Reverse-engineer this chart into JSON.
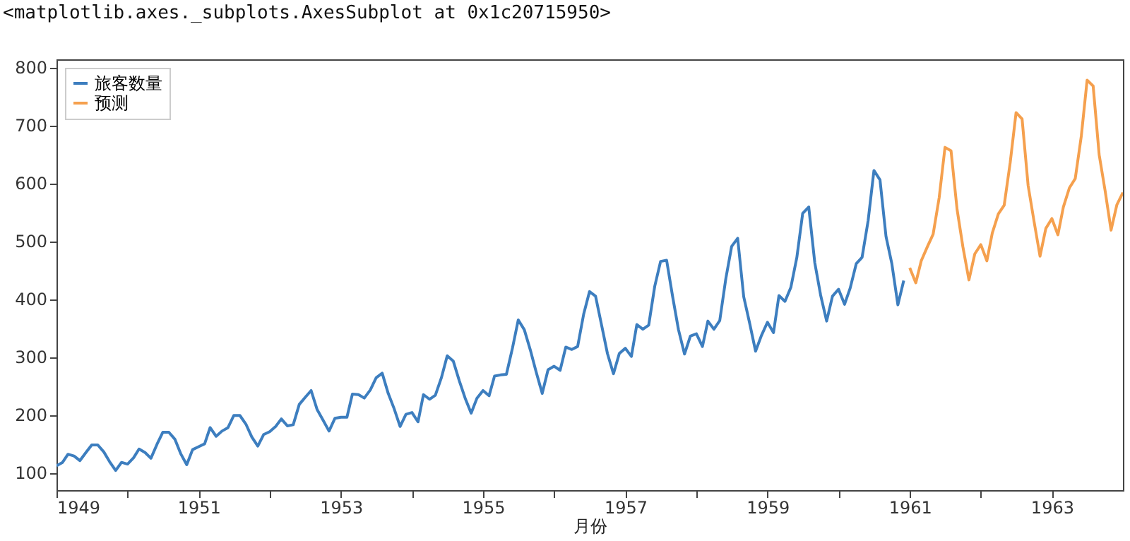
{
  "chart_data": {
    "type": "line",
    "xlabel": "月份",
    "annotations": [
      "<matplotlib.axes._subplots.AxesSubplot at 0x1c20715950>"
    ],
    "xlim": [
      "1949-01",
      "1964-01"
    ],
    "ylim": [
      70,
      814
    ],
    "xticks": [
      {
        "value": "1949-01",
        "label": "1949"
      },
      {
        "value": "1950-01",
        "label": null
      },
      {
        "value": "1951-01",
        "label": "1951"
      },
      {
        "value": "1952-01",
        "label": null
      },
      {
        "value": "1953-01",
        "label": "1953"
      },
      {
        "value": "1954-01",
        "label": null
      },
      {
        "value": "1955-01",
        "label": "1955"
      },
      {
        "value": "1956-01",
        "label": null
      },
      {
        "value": "1957-01",
        "label": "1957"
      },
      {
        "value": "1958-01",
        "label": null
      },
      {
        "value": "1959-01",
        "label": "1959"
      },
      {
        "value": "1960-01",
        "label": null
      },
      {
        "value": "1961-01",
        "label": "1961"
      },
      {
        "value": "1962-01",
        "label": null
      },
      {
        "value": "1963-01",
        "label": "1963"
      }
    ],
    "yticks": [
      100,
      200,
      300,
      400,
      500,
      600,
      700,
      800
    ],
    "grid": false,
    "legend": "top left",
    "line_style": "solid",
    "series": [
      {
        "name": "旅客数量",
        "color": "#3d7ebf",
        "x": [
          "1949-01",
          "1949-02",
          "1949-03",
          "1949-04",
          "1949-05",
          "1949-06",
          "1949-07",
          "1949-08",
          "1949-09",
          "1949-10",
          "1949-11",
          "1949-12",
          "1950-01",
          "1950-02",
          "1950-03",
          "1950-04",
          "1950-05",
          "1950-06",
          "1950-07",
          "1950-08",
          "1950-09",
          "1950-10",
          "1950-11",
          "1950-12",
          "1951-01",
          "1951-02",
          "1951-03",
          "1951-04",
          "1951-05",
          "1951-06",
          "1951-07",
          "1951-08",
          "1951-09",
          "1951-10",
          "1951-11",
          "1951-12",
          "1952-01",
          "1952-02",
          "1952-03",
          "1952-04",
          "1952-05",
          "1952-06",
          "1952-07",
          "1952-08",
          "1952-09",
          "1952-10",
          "1952-11",
          "1952-12",
          "1953-01",
          "1953-02",
          "1953-03",
          "1953-04",
          "1953-05",
          "1953-06",
          "1953-07",
          "1953-08",
          "1953-09",
          "1953-10",
          "1953-11",
          "1953-12",
          "1954-01",
          "1954-02",
          "1954-03",
          "1954-04",
          "1954-05",
          "1954-06",
          "1954-07",
          "1954-08",
          "1954-09",
          "1954-10",
          "1954-11",
          "1954-12",
          "1955-01",
          "1955-02",
          "1955-03",
          "1955-04",
          "1955-05",
          "1955-06",
          "1955-07",
          "1955-08",
          "1955-09",
          "1955-10",
          "1955-11",
          "1955-12",
          "1956-01",
          "1956-02",
          "1956-03",
          "1956-04",
          "1956-05",
          "1956-06",
          "1956-07",
          "1956-08",
          "1956-09",
          "1956-10",
          "1956-11",
          "1956-12",
          "1957-01",
          "1957-02",
          "1957-03",
          "1957-04",
          "1957-05",
          "1957-06",
          "1957-07",
          "1957-08",
          "1957-09",
          "1957-10",
          "1957-11",
          "1957-12",
          "1958-01",
          "1958-02",
          "1958-03",
          "1958-04",
          "1958-05",
          "1958-06",
          "1958-07",
          "1958-08",
          "1958-09",
          "1958-10",
          "1958-11",
          "1958-12",
          "1959-01",
          "1959-02",
          "1959-03",
          "1959-04",
          "1959-05",
          "1959-06",
          "1959-07",
          "1959-08",
          "1959-09",
          "1959-10",
          "1959-11",
          "1959-12",
          "1960-01",
          "1960-02",
          "1960-03",
          "1960-04",
          "1960-05",
          "1960-06",
          "1960-07",
          "1960-08",
          "1960-09",
          "1960-10",
          "1960-11",
          "1960-12"
        ],
        "values": [
          112,
          118,
          132,
          129,
          121,
          135,
          148,
          148,
          136,
          119,
          104,
          118,
          115,
          126,
          141,
          135,
          125,
          149,
          170,
          170,
          158,
          133,
          114,
          140,
          145,
          150,
          178,
          163,
          172,
          178,
          199,
          199,
          184,
          162,
          146,
          166,
          171,
          180,
          193,
          181,
          183,
          218,
          230,
          242,
          209,
          191,
          172,
          194,
          196,
          196,
          236,
          235,
          229,
          243,
          264,
          272,
          237,
          211,
          180,
          201,
          204,
          188,
          235,
          227,
          234,
          264,
          302,
          293,
          259,
          229,
          203,
          229,
          242,
          233,
          267,
          269,
          270,
          315,
          364,
          347,
          312,
          274,
          237,
          278,
          284,
          277,
          317,
          313,
          318,
          374,
          413,
          405,
          355,
          306,
          271,
          306,
          315,
          301,
          356,
          348,
          355,
          422,
          465,
          467,
          404,
          347,
          305,
          336,
          340,
          318,
          362,
          348,
          363,
          435,
          491,
          505,
          404,
          359,
          310,
          337,
          360,
          342,
          406,
          396,
          420,
          472,
          548,
          559,
          463,
          407,
          362,
          405,
          417,
          391,
          419,
          461,
          472,
          535,
          622,
          606,
          508,
          461,
          390,
          432
        ]
      },
      {
        "name": "预测",
        "color": "#f5a04e",
        "x": [
          "1961-01",
          "1961-02",
          "1961-03",
          "1961-04",
          "1961-05",
          "1961-06",
          "1961-07",
          "1961-08",
          "1961-09",
          "1961-10",
          "1961-11",
          "1961-12",
          "1962-01",
          "1962-02",
          "1962-03",
          "1962-04",
          "1962-05",
          "1962-06",
          "1962-07",
          "1962-08",
          "1962-09",
          "1962-10",
          "1962-11",
          "1962-12",
          "1963-01",
          "1963-02",
          "1963-03",
          "1963-04",
          "1963-05",
          "1963-06",
          "1963-07",
          "1963-08",
          "1963-09",
          "1963-10",
          "1963-11",
          "1963-12",
          "1964-01"
        ],
        "values": [
          454,
          428,
          466,
          490,
          512,
          575,
          662,
          656,
          555,
          490,
          433,
          478,
          494,
          466,
          514,
          547,
          562,
          636,
          722,
          711,
          596,
          535,
          474,
          522,
          539,
          511,
          559,
          592,
          608,
          681,
          778,
          768,
          649,
          588,
          519,
          563,
          584
        ]
      }
    ]
  }
}
